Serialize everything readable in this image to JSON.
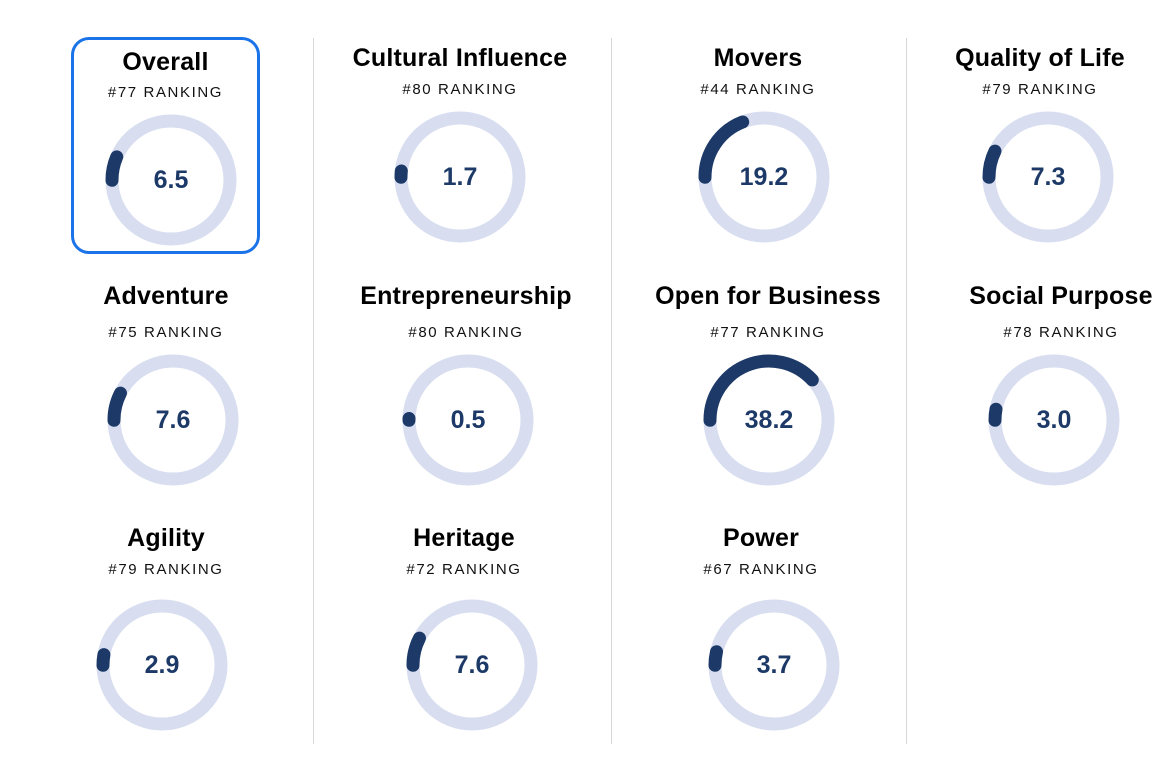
{
  "colors": {
    "track": "#d8def0",
    "fill": "#1c3967",
    "selected_border": "#1a73e8",
    "divider": "#d8d8d8"
  },
  "gauge_scale_max": 100,
  "metrics": [
    {
      "title": "Overall",
      "rank": "#77 RANKING",
      "value": "6.5",
      "selected": true
    },
    {
      "title": "Cultural Influence",
      "rank": "#80 RANKING",
      "value": "1.7"
    },
    {
      "title": "Movers",
      "rank": "#44 RANKING",
      "value": "19.2"
    },
    {
      "title": "Quality of Life",
      "rank": "#79 RANKING",
      "value": "7.3"
    },
    {
      "title": "Adventure",
      "rank": "#75 RANKING",
      "value": "7.6"
    },
    {
      "title": "Entrepreneurship",
      "rank": "#80 RANKING",
      "value": "0.5"
    },
    {
      "title": "Open for Business",
      "rank": "#77 RANKING",
      "value": "38.2"
    },
    {
      "title": "Social Purpose",
      "rank": "#78 RANKING",
      "value": "3.0"
    },
    {
      "title": "Agility",
      "rank": "#79 RANKING",
      "value": "2.9"
    },
    {
      "title": "Heritage",
      "rank": "#72 RANKING",
      "value": "7.6"
    },
    {
      "title": "Power",
      "rank": "#67 RANKING",
      "value": "3.7"
    }
  ]
}
